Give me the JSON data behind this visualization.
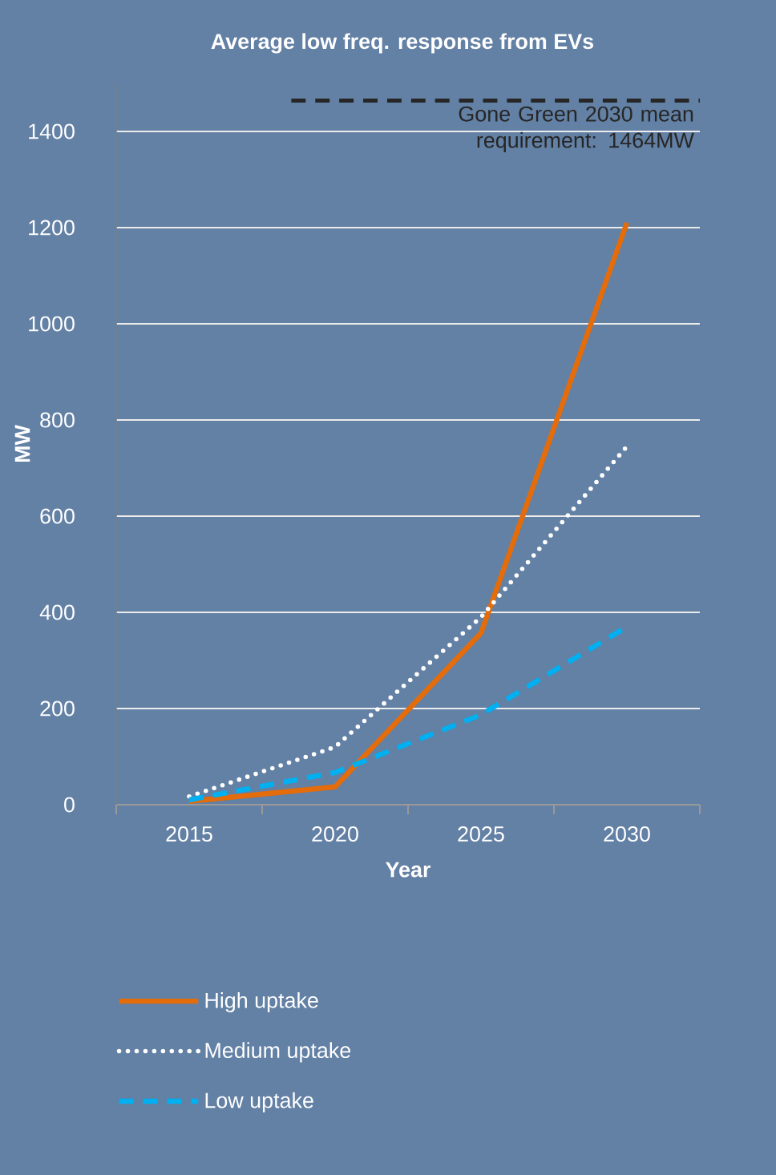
{
  "chart_data": {
    "type": "line",
    "title": "Average low freq. response from EVs",
    "xlabel": "Year",
    "ylabel": "MW",
    "categories": [
      "2015",
      "2020",
      "2025",
      "2030"
    ],
    "series": [
      {
        "name": "High uptake",
        "color": "#e46c0a",
        "values": [
          7,
          37,
          357,
          1210
        ],
        "line_style": "solid"
      },
      {
        "name": "Medium uptake",
        "color": "#ffffff",
        "values": [
          17,
          120,
          390,
          745
        ],
        "line_style": "dotted"
      },
      {
        "name": "Low uptake",
        "color": "#00b0f0",
        "values": [
          10,
          67,
          187,
          370
        ],
        "line_style": "dashed"
      }
    ],
    "ylim": [
      0,
      1500
    ],
    "yticks": [
      0,
      200,
      400,
      600,
      800,
      1000,
      1200,
      1400
    ],
    "ref_lines": [
      {
        "axis": "y",
        "value": 1464,
        "label": "Gone Green 2030 mean requirement: 1464MW",
        "color": "#262626",
        "line_style": "dashed"
      }
    ],
    "grid": "y",
    "legend": "bottom",
    "marker": "none"
  }
}
